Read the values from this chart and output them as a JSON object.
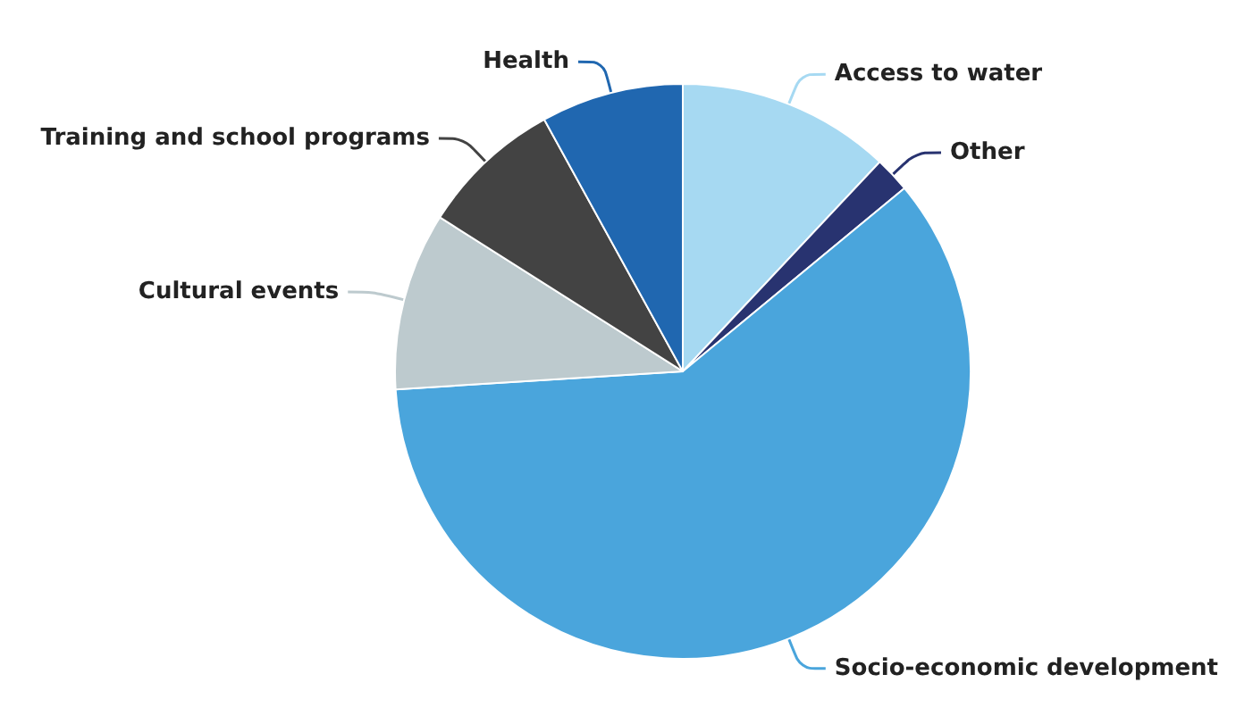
{
  "chart_data": {
    "type": "pie",
    "categories": [
      "Access to water",
      "Other",
      "Socio-economic development",
      "Cultural events",
      "Training and school programs",
      "Health"
    ],
    "values": [
      12,
      2,
      60,
      10,
      8,
      8
    ],
    "colors": [
      "#a6d9f2",
      "#283370",
      "#4aa5dc",
      "#bdcace",
      "#434343",
      "#2067b0"
    ],
    "legend": false
  }
}
